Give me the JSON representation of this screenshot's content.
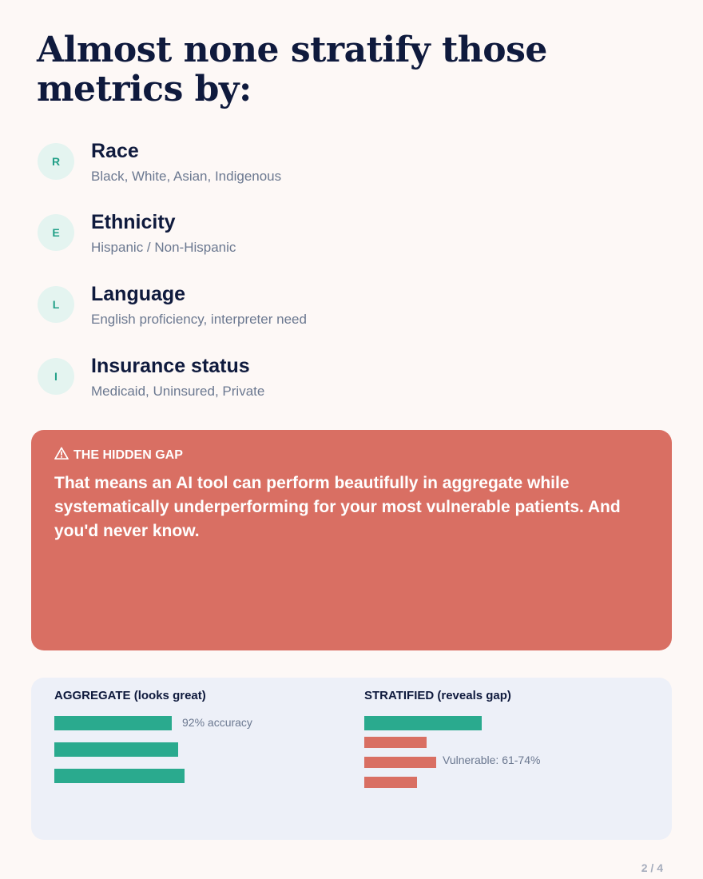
{
  "headline": "Almost none stratify those metrics by:",
  "items": [
    {
      "letter": "R",
      "title": "Race",
      "subtitle": "Black, White, Asian, Indigenous"
    },
    {
      "letter": "E",
      "title": "Ethnicity",
      "subtitle": "Hispanic / Non-Hispanic"
    },
    {
      "letter": "L",
      "title": "Language",
      "subtitle": "English proficiency, interpreter need"
    },
    {
      "letter": "I",
      "title": "Insurance status",
      "subtitle": "Medicaid, Uninsured, Private"
    }
  ],
  "gap": {
    "icon": "warning-icon",
    "label": "THE HIDDEN GAP",
    "text": "That means an AI tool can perform beautifully in aggregate while systematically underperforming for your most vulnerable patients. And you'd never know."
  },
  "comparison": {
    "aggregate": {
      "title": "AGGREGATE (looks great)",
      "note": "92% accuracy"
    },
    "stratified": {
      "title": "STRATIFIED (reveals gap)",
      "note": "Vulnerable: 61-74%"
    },
    "colors": {
      "good": "#2aaa8e",
      "bad": "#d96f63"
    }
  },
  "pager": "2 / 4",
  "colors": {
    "background": "#fdf8f6",
    "navy": "#0f1a3d",
    "accent": "#d96f63",
    "teal": "#2aaa8e"
  }
}
